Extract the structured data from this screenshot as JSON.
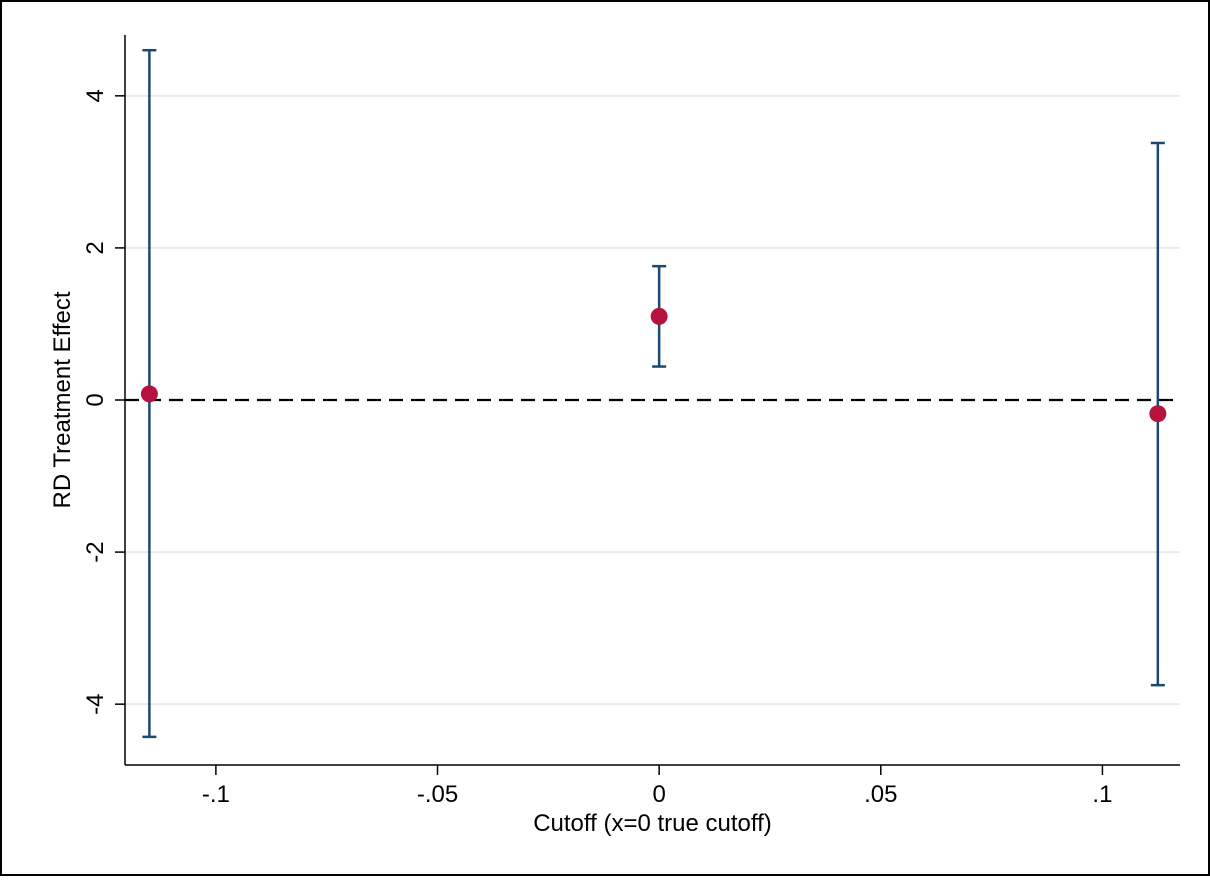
{
  "chart_data": {
    "type": "scatter",
    "title": "",
    "xlabel": "Cutoff (x=0 true cutoff)",
    "ylabel": "RD Treatment Effect",
    "xlim": [
      -0.1205,
      0.1175
    ],
    "ylim": [
      -4.8,
      4.8
    ],
    "x_ticks": [
      {
        "value": -0.1,
        "label": "-.1"
      },
      {
        "value": -0.05,
        "label": "-.05"
      },
      {
        "value": 0,
        "label": "0"
      },
      {
        "value": 0.05,
        "label": ".05"
      },
      {
        "value": 0.1,
        "label": ".1"
      }
    ],
    "y_ticks": [
      {
        "value": -4,
        "label": "-4"
      },
      {
        "value": -2,
        "label": "-2"
      },
      {
        "value": 0,
        "label": "0"
      },
      {
        "value": 2,
        "label": "2"
      },
      {
        "value": 4,
        "label": "4"
      }
    ],
    "grid": true,
    "reference_line": {
      "y": 0,
      "style": "dashed"
    },
    "points": [
      {
        "x": -0.115,
        "y": 0.08,
        "ci_low": -4.43,
        "ci_high": 4.6
      },
      {
        "x": 0,
        "y": 1.1,
        "ci_low": 0.44,
        "ci_high": 1.76
      },
      {
        "x": 0.1125,
        "y": -0.18,
        "ci_low": -3.75,
        "ci_high": 3.38
      }
    ],
    "point_color": "#b5123d",
    "ci_color": "#1a4a72"
  }
}
